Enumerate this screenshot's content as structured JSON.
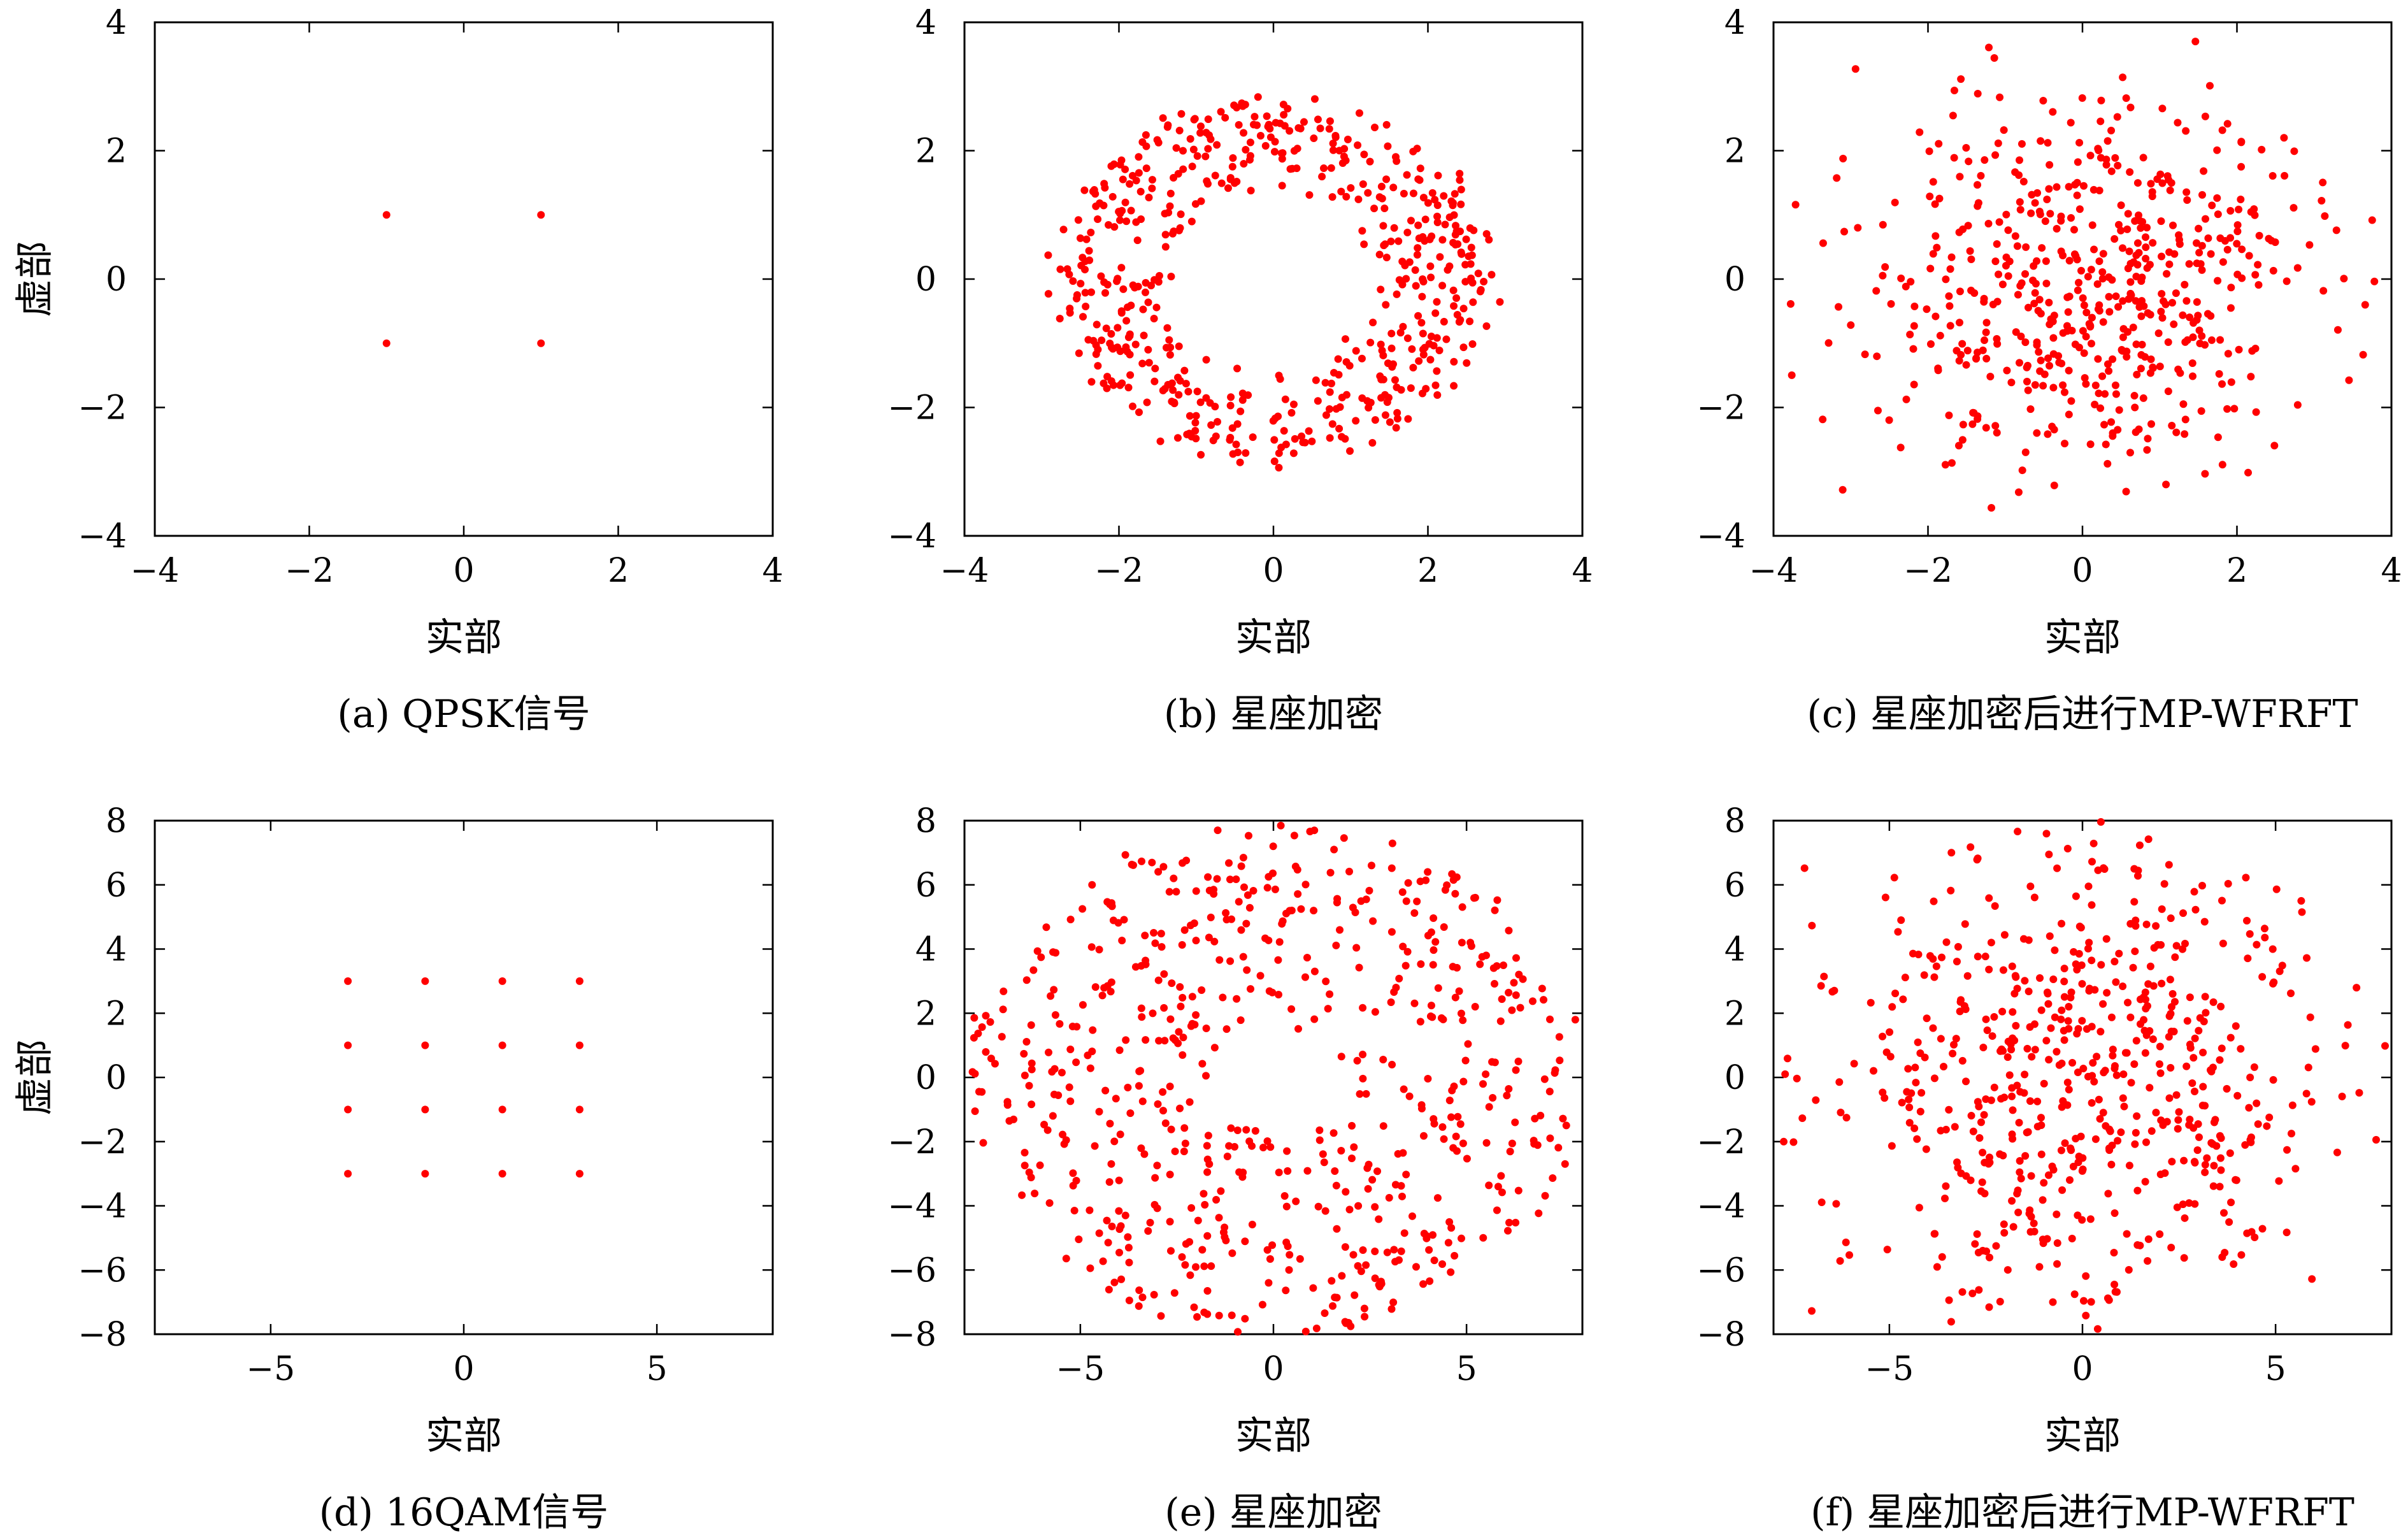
{
  "figure": {
    "panels": [
      {
        "caption": "(a) QPSK信号"
      },
      {
        "caption": "(b) 星座加密"
      },
      {
        "caption": "(c) 星座加密后进行MP-WFRFT"
      },
      {
        "caption": "(d) 16QAM信号"
      },
      {
        "caption": "(e) 星座加密"
      },
      {
        "caption": "(f) 星座加密后进行MP-WFRFT"
      }
    ]
  },
  "chart_data": [
    {
      "type": "scatter",
      "title": "",
      "xlabel": "实部",
      "ylabel": "虚部",
      "xlim": [
        -4,
        4
      ],
      "ylim": [
        -4,
        4
      ],
      "xticks": [
        -4,
        -2,
        0,
        2,
        4
      ],
      "yticks": [
        -4,
        -2,
        0,
        2,
        4
      ],
      "grid": false,
      "marker_color": "#ff0000",
      "points": [
        [
          -1,
          1
        ],
        [
          1,
          1
        ],
        [
          -1,
          -1
        ],
        [
          1,
          -1
        ]
      ]
    },
    {
      "type": "scatter",
      "title": "",
      "xlabel": "实部",
      "ylabel": "",
      "xlim": [
        -4,
        4
      ],
      "ylim": [
        -4,
        4
      ],
      "xticks": [
        -4,
        -2,
        0,
        2,
        4
      ],
      "yticks": [
        -4,
        -2,
        0,
        2,
        4
      ],
      "grid": false,
      "marker_color": "#ff0000",
      "distribution": {
        "shape": "ring",
        "n": 560,
        "r_min": 1.4,
        "r_max": 2.85,
        "seed": 11
      }
    },
    {
      "type": "scatter",
      "title": "",
      "xlabel": "实部",
      "ylabel": "",
      "xlim": [
        -4,
        4
      ],
      "ylim": [
        -4,
        4
      ],
      "xticks": [
        -4,
        -2,
        0,
        2,
        4
      ],
      "yticks": [
        -4,
        -2,
        0,
        2,
        4
      ],
      "grid": false,
      "marker_color": "#ff0000",
      "distribution": {
        "shape": "cloud",
        "n": 560,
        "sigma": 1.5,
        "clip": 3.8,
        "seed": 23
      }
    },
    {
      "type": "scatter",
      "title": "",
      "xlabel": "实部",
      "ylabel": "虚部",
      "xlim": [
        -8,
        8
      ],
      "ylim": [
        -8,
        8
      ],
      "xticks": [
        -5,
        0,
        5
      ],
      "yticks": [
        -8,
        -6,
        -4,
        -2,
        0,
        2,
        4,
        6,
        8
      ],
      "grid": false,
      "marker_color": "#ff0000",
      "points": [
        [
          -3,
          3
        ],
        [
          -1,
          3
        ],
        [
          1,
          3
        ],
        [
          3,
          3
        ],
        [
          -3,
          1
        ],
        [
          -1,
          1
        ],
        [
          1,
          1
        ],
        [
          3,
          1
        ],
        [
          -3,
          -1
        ],
        [
          -1,
          -1
        ],
        [
          1,
          -1
        ],
        [
          3,
          -1
        ],
        [
          -3,
          -3
        ],
        [
          -1,
          -3
        ],
        [
          1,
          -3
        ],
        [
          3,
          -3
        ]
      ]
    },
    {
      "type": "scatter",
      "title": "",
      "xlabel": "实部",
      "ylabel": "",
      "xlim": [
        -8,
        8
      ],
      "ylim": [
        -8,
        8
      ],
      "xticks": [
        -5,
        0,
        5
      ],
      "yticks": [
        -8,
        -6,
        -4,
        -2,
        0,
        2,
        4,
        6,
        8
      ],
      "grid": false,
      "marker_color": "#ff0000",
      "distribution": {
        "shape": "ring",
        "n": 620,
        "r_min": 1.6,
        "r_max": 8.0,
        "seed": 37
      }
    },
    {
      "type": "scatter",
      "title": "",
      "xlabel": "实部",
      "ylabel": "",
      "xlim": [
        -8,
        8
      ],
      "ylim": [
        -8,
        8
      ],
      "xticks": [
        -5,
        0,
        5
      ],
      "yticks": [
        -8,
        -6,
        -4,
        -2,
        0,
        2,
        4,
        6,
        8
      ],
      "grid": false,
      "marker_color": "#ff0000",
      "distribution": {
        "shape": "cloud",
        "n": 600,
        "sigma": 3.5,
        "clip": 8.0,
        "seed": 53
      }
    }
  ]
}
